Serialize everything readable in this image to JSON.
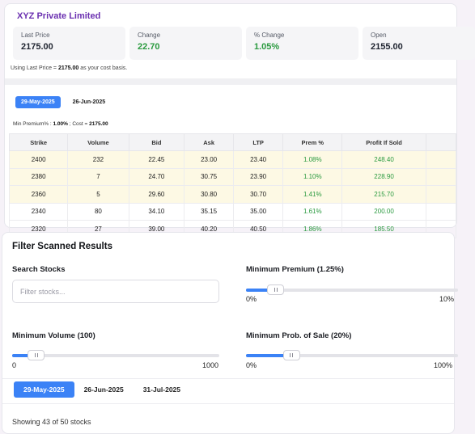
{
  "company": {
    "name": "XYZ Private Limited"
  },
  "stats": [
    {
      "label": "Last Price",
      "value": "2175.00",
      "tone": "neutral"
    },
    {
      "label": "Change",
      "value": "22.70",
      "tone": "positive"
    },
    {
      "label": "% Change",
      "value": "1.05%",
      "tone": "positive"
    },
    {
      "label": "Open",
      "value": "2155.00",
      "tone": "neutral"
    }
  ],
  "basis": {
    "prefix": "Using Last Price =",
    "value": "2175.00",
    "suffix": "as your cost basis."
  },
  "top_dates": [
    {
      "label": "29-May-2025",
      "active": true
    },
    {
      "label": "26-Jun-2025",
      "active": false
    }
  ],
  "min_premium": {
    "text_prefix": "Min Premium% :",
    "premium": "1.00%",
    "text_mid": "; Cost =",
    "cost": "2175.00"
  },
  "table": {
    "columns": [
      "Strike",
      "Volume",
      "Bid",
      "Ask",
      "LTP",
      "Prem %",
      "Profit If Sold",
      ""
    ],
    "rows": [
      {
        "cells": [
          "2400",
          "232",
          "22.45",
          "23.00",
          "23.40",
          "1.08%",
          "248.40",
          ""
        ],
        "highlight": true
      },
      {
        "cells": [
          "2380",
          "7",
          "24.70",
          "30.75",
          "23.90",
          "1.10%",
          "228.90",
          ""
        ],
        "highlight": true
      },
      {
        "cells": [
          "2360",
          "5",
          "29.60",
          "30.80",
          "30.70",
          "1.41%",
          "215.70",
          ""
        ],
        "highlight": true
      },
      {
        "cells": [
          "2340",
          "80",
          "34.10",
          "35.15",
          "35.00",
          "1.61%",
          "200.00",
          ""
        ],
        "highlight": false
      },
      {
        "cells": [
          "2320",
          "27",
          "39.00",
          "40.20",
          "40.50",
          "1.86%",
          "185.50",
          ""
        ],
        "highlight": false
      }
    ]
  },
  "filter": {
    "title": "Filter Scanned Results",
    "search_label": "Search Stocks",
    "search_placeholder": "Filter stocks...",
    "min_premium_label": "Minimum Premium (1.25%)",
    "min_premium_min": "0%",
    "min_premium_max": "10%",
    "min_premium_value_fraction": 0.125,
    "min_volume_label": "Minimum Volume (100)",
    "min_volume_min": "0",
    "min_volume_max": "1000",
    "min_volume_value_fraction": 0.1,
    "min_prob_label": "Minimum Prob. of Sale (20%)",
    "min_prob_min": "0%",
    "min_prob_max": "100%",
    "min_prob_value_fraction": 0.2,
    "dates": [
      {
        "label": "29-May-2025",
        "active": true
      },
      {
        "label": "26-Jun-2025",
        "active": false
      },
      {
        "label": "31-Jul-2025",
        "active": false
      }
    ],
    "showing": "Showing 43 of 50 stocks"
  },
  "colors": {
    "accent": "#3b82f6",
    "brand": "#6a2fb0",
    "positive": "#2a9a3f",
    "highlight_row": "#fdf9e4"
  }
}
